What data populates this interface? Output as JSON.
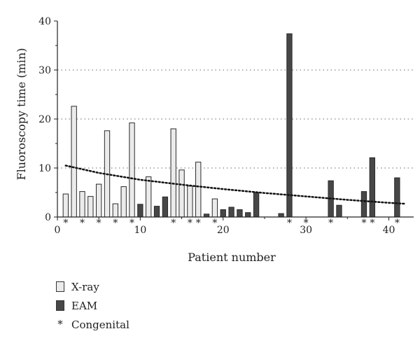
{
  "chart_data": {
    "type": "bar",
    "xlabel": "Patient number",
    "ylabel": "Fluoroscopy time (min)",
    "xlim": [
      0,
      43
    ],
    "ylim": [
      0,
      40
    ],
    "xticks": [
      0,
      10,
      20,
      30,
      40
    ],
    "yticks": [
      0,
      10,
      20,
      30,
      40
    ],
    "grid": "dotted horizontal at 10, 20, 30",
    "legend_position": "bottom-left",
    "series": [
      {
        "name": "X-ray",
        "color": "#ebebeb",
        "x": [
          1,
          2,
          3,
          4,
          5,
          6,
          7,
          8,
          9,
          11,
          14,
          15,
          16,
          17,
          19
        ],
        "values": [
          4.7,
          22.6,
          5.2,
          4.2,
          6.7,
          17.6,
          2.7,
          6.2,
          19.2,
          8.2,
          18.0,
          9.6,
          6.3,
          11.2,
          3.7
        ]
      },
      {
        "name": "EAM",
        "color": "#474747",
        "x": [
          10,
          12,
          13,
          18,
          20,
          21,
          22,
          23,
          24,
          25,
          26,
          27,
          28,
          29,
          30,
          31,
          32,
          33,
          34,
          35,
          36,
          37,
          38,
          39,
          40,
          41
        ],
        "values": [
          2.6,
          2.2,
          4.1,
          0.6,
          1.5,
          2.0,
          1.5,
          0.9,
          5.0,
          0,
          0,
          0.7,
          37.4,
          0,
          0,
          0,
          0,
          7.4,
          2.4,
          0,
          0,
          5.2,
          12.1,
          0,
          0,
          8.0
        ]
      }
    ],
    "congenital_x": [
      1,
      3,
      5,
      7,
      9,
      14,
      16,
      17,
      19,
      28,
      30,
      33,
      37,
      38,
      41
    ],
    "congenital_marker": "*",
    "trendline": {
      "style": "dotted",
      "x": [
        1,
        5,
        10,
        15,
        20,
        25,
        30,
        35,
        40,
        42
      ],
      "values": [
        10.5,
        9.0,
        7.6,
        6.6,
        5.7,
        4.9,
        4.2,
        3.5,
        2.9,
        2.7
      ]
    },
    "legend": [
      {
        "label": "X-ray",
        "symbol": "light-bar"
      },
      {
        "label": "EAM",
        "symbol": "dark-bar"
      },
      {
        "label": "Congenital",
        "symbol": "*"
      }
    ]
  }
}
